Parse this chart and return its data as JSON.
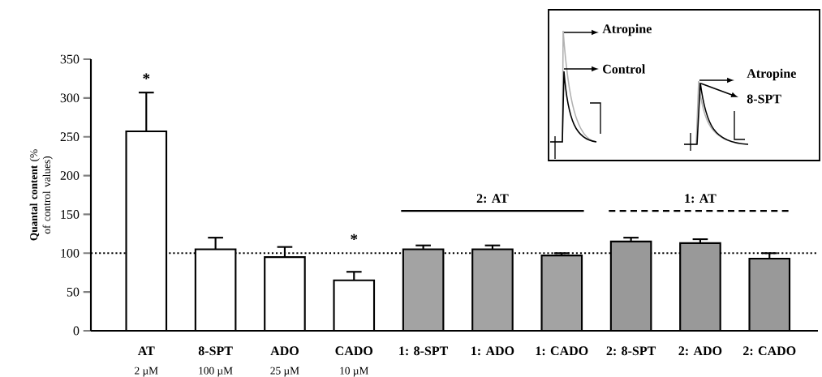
{
  "chart_data": {
    "type": "bar",
    "ylabel": "**Quantal content** (% of control values)",
    "categories": [
      "AT",
      "8-SPT",
      "ADO",
      "CADO",
      "1: 8-SPT",
      "1: ADO",
      "1: CADO",
      "2: 8-SPT",
      "2: ADO",
      "2: CADO"
    ],
    "values": [
      257,
      105,
      95,
      65,
      105,
      105,
      97,
      115,
      113,
      93
    ],
    "errors": [
      50,
      15,
      13,
      11,
      5,
      5,
      3,
      5,
      5,
      7
    ],
    "colors": [
      "#ffffff",
      "#ffffff",
      "#ffffff",
      "#ffffff",
      "#a3a3a3",
      "#a3a3a3",
      "#a3a3a3",
      "#999999",
      "#999999",
      "#999999"
    ],
    "ylim": [
      0,
      350
    ],
    "yticks": [
      0,
      50,
      100,
      150,
      200,
      250,
      300,
      350
    ],
    "ref_lines": [
      {
        "axis": "y",
        "value": 100,
        "line_style": "dotted"
      }
    ],
    "annotations": [
      "*",
      "*",
      "2: AT",
      "1: AT",
      "2 µM",
      "100 µM",
      "25 µM",
      "10 µM",
      "Atropine",
      "Control",
      "Atropine",
      "8-SPT"
    ]
  }
}
